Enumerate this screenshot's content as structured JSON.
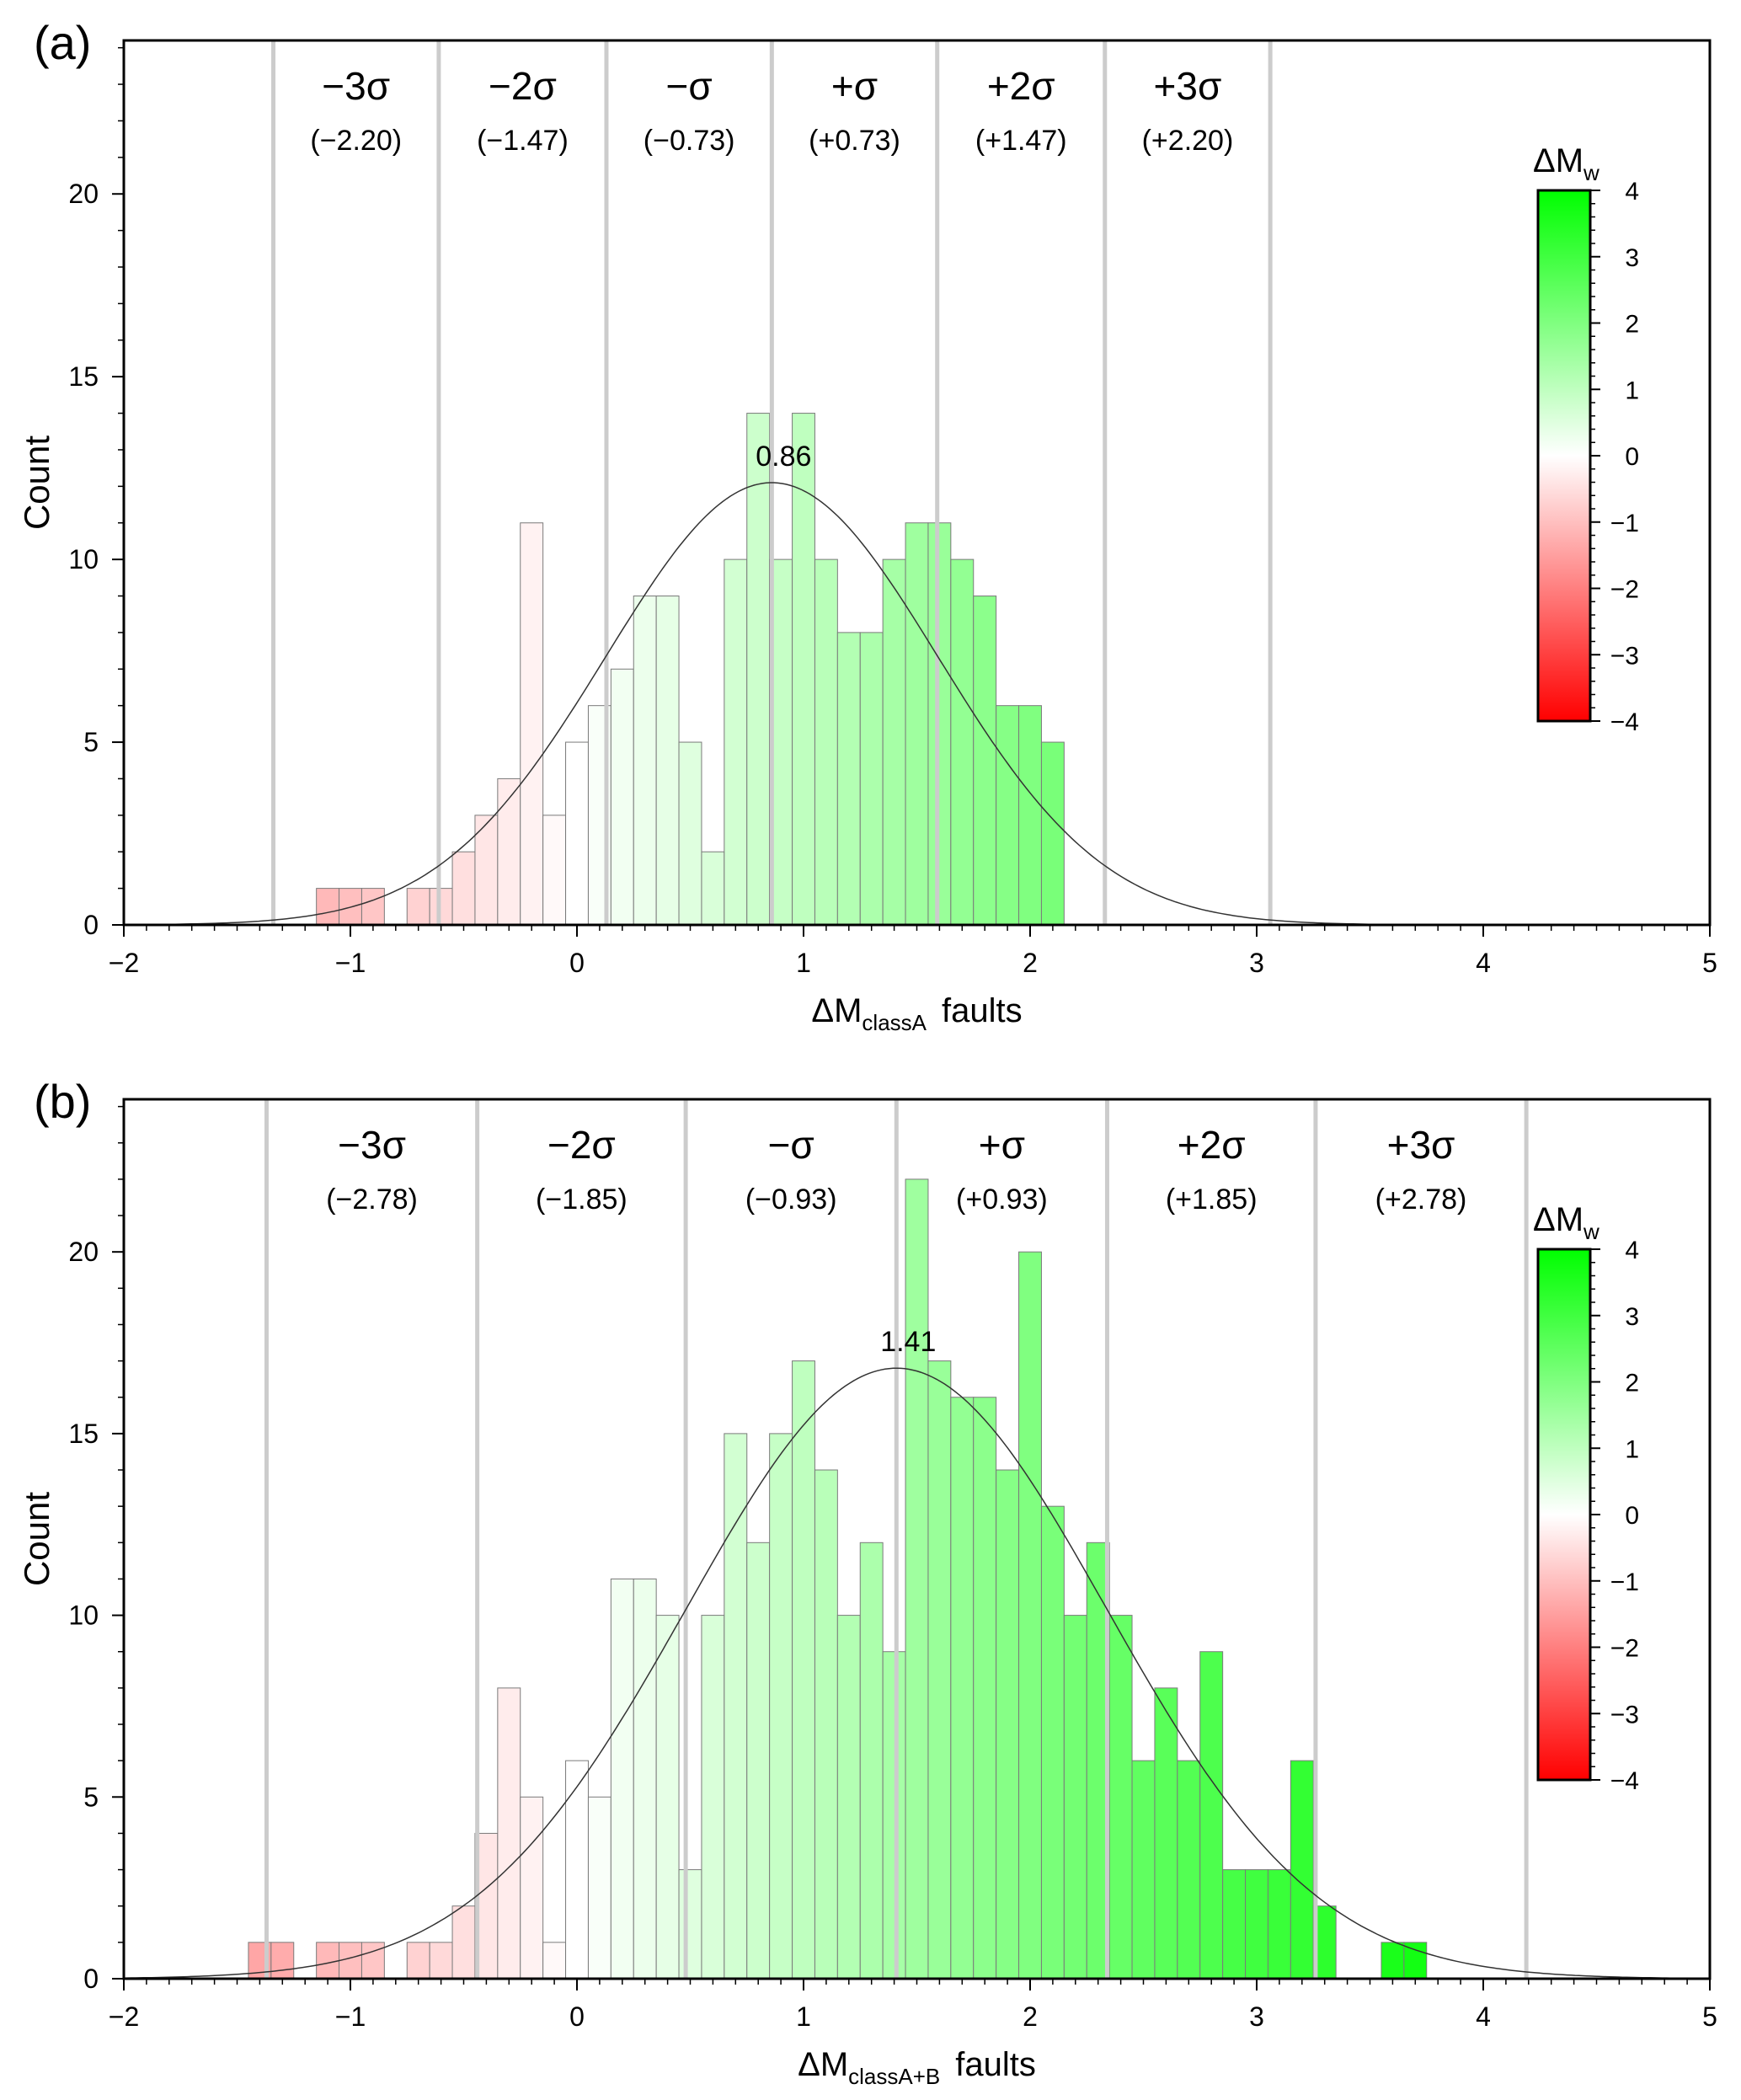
{
  "chart_data": [
    {
      "panel_label": "(a)",
      "type": "bar",
      "title": "",
      "xlabel_main": "ΔM",
      "xlabel_sub": "classA",
      "xlabel_tail": "faults",
      "ylabel": "Count",
      "xlim": [
        -2,
        5
      ],
      "ylim": [
        0,
        24.2
      ],
      "x_ticks": [
        "−2",
        "−1",
        "0",
        "1",
        "2",
        "3",
        "4",
        "5"
      ],
      "y_ticks": [
        "0",
        "5",
        "10",
        "15",
        "20"
      ],
      "bin_width": 0.1,
      "bin_starts": [
        -1.15,
        -1.05,
        -0.95,
        -0.75,
        -0.65,
        -0.55,
        -0.45,
        -0.35,
        -0.25,
        -0.15,
        -0.05,
        0.05,
        0.15,
        0.25,
        0.35,
        0.45,
        0.55,
        0.65,
        0.75,
        0.85,
        0.95,
        1.05,
        1.15,
        1.25,
        1.35,
        1.45,
        1.55,
        1.65,
        1.75,
        1.85,
        1.95,
        2.05
      ],
      "counts": [
        1,
        1,
        1,
        1,
        1,
        2,
        3,
        4,
        11,
        3,
        5,
        6,
        7,
        9,
        9,
        5,
        2,
        10,
        14,
        10,
        14,
        10,
        8,
        8,
        10,
        11,
        11,
        10,
        9,
        6,
        6,
        5
      ],
      "mean": 0.86,
      "mean_label": "0.86",
      "sigma": 0.733,
      "curve_peak": 12.1,
      "sigma_lines": [
        -1.34,
        -0.61,
        0.13,
        0.86,
        1.59,
        2.33,
        3.06
      ],
      "sigma_labels": [
        "−3σ",
        "−2σ",
        "−σ",
        "+σ",
        "+2σ",
        "+3σ"
      ],
      "sigma_values": [
        "(−2.20)",
        "(−1.47)",
        "(−0.73)",
        "(+0.73)",
        "(+1.47)",
        "(+2.20)"
      ],
      "colorbar_title_main": "ΔM",
      "colorbar_title_sub": "w",
      "colorbar_ticks": [
        "4",
        "3",
        "2",
        "1",
        "0",
        "−1",
        "−2",
        "−3",
        "−4"
      ],
      "colorbar_range": [
        -4,
        4
      ],
      "color_positive": "#00ff00",
      "color_negative": "#ff0000"
    },
    {
      "panel_label": "(b)",
      "type": "bar",
      "title": "",
      "xlabel_main": "ΔM",
      "xlabel_sub": "classA+B",
      "xlabel_tail": "faults",
      "ylabel": "Count",
      "xlim": [
        -2,
        5
      ],
      "ylim": [
        0,
        24.2
      ],
      "x_ticks": [
        "−2",
        "−1",
        "0",
        "1",
        "2",
        "3",
        "4",
        "5"
      ],
      "y_ticks": [
        "0",
        "5",
        "10",
        "15",
        "20"
      ],
      "bin_width": 0.1,
      "bin_starts": [
        -1.45,
        -1.35,
        -1.15,
        -1.05,
        -0.95,
        -0.75,
        -0.65,
        -0.55,
        -0.45,
        -0.35,
        -0.25,
        -0.15,
        -0.05,
        0.05,
        0.15,
        0.25,
        0.35,
        0.45,
        0.55,
        0.65,
        0.75,
        0.85,
        0.95,
        1.05,
        1.15,
        1.25,
        1.35,
        1.45,
        1.55,
        1.65,
        1.75,
        1.85,
        1.95,
        2.05,
        2.15,
        2.25,
        2.35,
        2.45,
        2.55,
        2.65,
        2.75,
        2.85,
        2.95,
        3.05,
        3.15,
        3.25,
        3.55,
        3.65
      ],
      "counts": [
        1,
        1,
        1,
        1,
        1,
        1,
        1,
        2,
        4,
        8,
        5,
        1,
        6,
        5,
        11,
        11,
        10,
        3,
        10,
        15,
        12,
        15,
        17,
        14,
        10,
        12,
        9,
        22,
        17,
        16,
        16,
        14,
        20,
        13,
        10,
        12,
        10,
        6,
        8,
        6,
        9,
        3,
        3,
        3,
        6,
        2,
        1,
        1
      ],
      "mean": 1.41,
      "mean_label": "1.41",
      "sigma": 0.927,
      "curve_peak": 16.8,
      "sigma_lines": [
        -1.37,
        -0.44,
        0.48,
        1.41,
        2.34,
        3.26,
        4.19
      ],
      "sigma_labels": [
        "−3σ",
        "−2σ",
        "−σ",
        "+σ",
        "+2σ",
        "+3σ"
      ],
      "sigma_values": [
        "(−2.78)",
        "(−1.85)",
        "(−0.93)",
        "(+0.93)",
        "(+1.85)",
        "(+2.78)"
      ],
      "colorbar_title_main": "ΔM",
      "colorbar_title_sub": "w",
      "colorbar_ticks": [
        "4",
        "3",
        "2",
        "1",
        "0",
        "−1",
        "−2",
        "−3",
        "−4"
      ],
      "colorbar_range": [
        -4,
        4
      ],
      "color_positive": "#00ff00",
      "color_negative": "#ff0000"
    }
  ]
}
